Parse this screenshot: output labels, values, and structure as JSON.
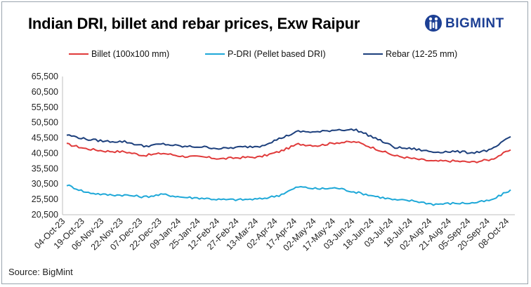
{
  "title": "Indian DRI, billet and rebar prices, Exw Raipur",
  "brand": {
    "name": "BIGMINT",
    "color": "#1c3f94",
    "icon": "bigmint-logo-icon"
  },
  "source": "Source: BigMint",
  "chart_data": {
    "type": "line",
    "title": "Indian DRI, billet and rebar prices, Exw Raipur",
    "xlabel": "",
    "ylabel": "",
    "ylim": [
      20500,
      65500
    ],
    "yticks": [
      "65,500",
      "60,500",
      "55,500",
      "50,500",
      "45,500",
      "40,500",
      "35,500",
      "30,500",
      "25,500",
      "20,500"
    ],
    "categories": [
      "04-Oct-23",
      "19-Oct-23",
      "06-Nov-23",
      "22-Nov-23",
      "07-Dec-23",
      "22-Dec-23",
      "09-Jan-24",
      "25-Jan-24",
      "12-Feb-24",
      "27-Feb-24",
      "13-Mar-24",
      "02-Apr-24",
      "17-Apr-24",
      "02-May-24",
      "17-May-24",
      "03-Jun-24",
      "18-Jun-24",
      "03-Jul-24",
      "18-Jul-24",
      "02-Aug-24",
      "21-Aug-24",
      "05-Sep-24",
      "20-Sep-24",
      "08-Oct-24"
    ],
    "legend_position": "top",
    "series": [
      {
        "name": "Billet (100x100 mm)",
        "color": "#e03a3a",
        "values": [
          43500,
          42000,
          41200,
          41000,
          39800,
          40500,
          39500,
          39300,
          38700,
          39100,
          39300,
          41000,
          43500,
          43000,
          44000,
          44200,
          42000,
          39700,
          38700,
          37900,
          38000,
          37600,
          38500,
          41600
        ]
      },
      {
        "name": "P-DRI (Pellet based DRI)",
        "color": "#1ea8d8",
        "values": [
          30200,
          27800,
          27000,
          26900,
          26300,
          27100,
          26200,
          25900,
          25400,
          25400,
          25600,
          26800,
          29600,
          28900,
          29200,
          27800,
          26500,
          25300,
          25000,
          23900,
          24200,
          24300,
          25200,
          28600
        ]
      },
      {
        "name": "Rebar (12-25 mm)",
        "color": "#1c3f7c",
        "values": [
          46500,
          45100,
          44400,
          44300,
          42800,
          43500,
          42700,
          42600,
          42000,
          42500,
          42800,
          45200,
          47600,
          47400,
          48200,
          48100,
          45400,
          42400,
          41900,
          40900,
          41100,
          40700,
          41600,
          45900
        ]
      }
    ]
  }
}
